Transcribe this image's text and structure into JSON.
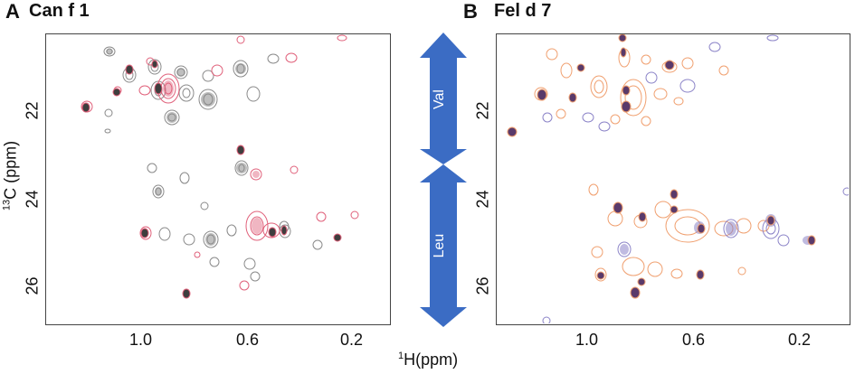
{
  "panels": {
    "a": {
      "letter": "A",
      "title": "Can f 1"
    },
    "b": {
      "letter": "B",
      "title": "Fel d 7"
    }
  },
  "axes": {
    "y_label_main": "C (ppm)",
    "y_label_sup": "13",
    "x_label_main": "H(ppm)",
    "x_label_sup": "1",
    "y_ticks": [
      "22",
      "24",
      "26"
    ],
    "x_ticks": [
      "1.0",
      "0.6",
      "0.2"
    ]
  },
  "arrow": {
    "top_label": "Val",
    "bottom_label": "Leu",
    "color": "#3b6cc4"
  },
  "colors": {
    "grey": "#8a8a8a",
    "dark": "#3e3e3e",
    "pink": "#e0607a",
    "purple": "#8c84c8",
    "dark_purple": "#5a3a6a",
    "orange": "#f0a070"
  }
}
